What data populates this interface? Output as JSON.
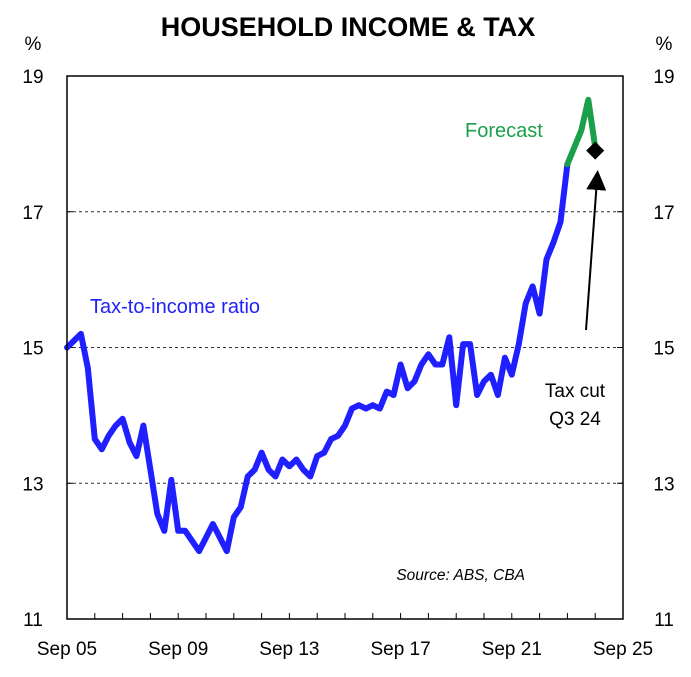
{
  "chart_data": {
    "type": "line",
    "title": "HOUSEHOLD INCOME & TAX",
    "ylabel_left": "%",
    "ylabel_right": "%",
    "ylim": [
      11,
      19
    ],
    "y_ticks": [
      "11",
      "13",
      "15",
      "17",
      "19"
    ],
    "x_ticks": [
      "Sep 05",
      "Sep 09",
      "Sep 13",
      "Sep 17",
      "Sep 21",
      "Sep 25"
    ],
    "grid": "horizontal dashed",
    "series": [
      {
        "name": "Tax-to-income ratio",
        "color": "#1f1fff",
        "points": [
          [
            "2005-09",
            15.0
          ],
          [
            "2005-12",
            15.1
          ],
          [
            "2006-03",
            15.2
          ],
          [
            "2006-06",
            14.7
          ],
          [
            "2006-09",
            13.65
          ],
          [
            "2006-12",
            13.5
          ],
          [
            "2007-03",
            13.7
          ],
          [
            "2007-06",
            13.85
          ],
          [
            "2007-09",
            13.95
          ],
          [
            "2007-12",
            13.6
          ],
          [
            "2008-03",
            13.4
          ],
          [
            "2008-06",
            13.85
          ],
          [
            "2008-09",
            13.2
          ],
          [
            "2008-12",
            12.55
          ],
          [
            "2009-03",
            12.3
          ],
          [
            "2009-06",
            13.05
          ],
          [
            "2009-09",
            12.3
          ],
          [
            "2009-12",
            12.3
          ],
          [
            "2010-03",
            12.15
          ],
          [
            "2010-06",
            12.0
          ],
          [
            "2010-09",
            12.2
          ],
          [
            "2010-12",
            12.4
          ],
          [
            "2011-03",
            12.2
          ],
          [
            "2011-06",
            12.0
          ],
          [
            "2011-09",
            12.5
          ],
          [
            "2011-12",
            12.65
          ],
          [
            "2012-03",
            13.1
          ],
          [
            "2012-06",
            13.2
          ],
          [
            "2012-09",
            13.45
          ],
          [
            "2012-12",
            13.2
          ],
          [
            "2013-03",
            13.1
          ],
          [
            "2013-06",
            13.35
          ],
          [
            "2013-09",
            13.25
          ],
          [
            "2013-12",
            13.35
          ],
          [
            "2014-03",
            13.2
          ],
          [
            "2014-06",
            13.1
          ],
          [
            "2014-09",
            13.4
          ],
          [
            "2014-12",
            13.45
          ],
          [
            "2015-03",
            13.65
          ],
          [
            "2015-06",
            13.7
          ],
          [
            "2015-09",
            13.85
          ],
          [
            "2015-12",
            14.1
          ],
          [
            "2016-03",
            14.15
          ],
          [
            "2016-06",
            14.1
          ],
          [
            "2016-09",
            14.15
          ],
          [
            "2016-12",
            14.1
          ],
          [
            "2017-03",
            14.35
          ],
          [
            "2017-06",
            14.3
          ],
          [
            "2017-09",
            14.75
          ],
          [
            "2017-12",
            14.4
          ],
          [
            "2018-03",
            14.5
          ],
          [
            "2018-06",
            14.75
          ],
          [
            "2018-09",
            14.9
          ],
          [
            "2018-12",
            14.75
          ],
          [
            "2019-03",
            14.75
          ],
          [
            "2019-06",
            15.15
          ],
          [
            "2019-09",
            14.15
          ],
          [
            "2019-12",
            15.05
          ],
          [
            "2020-03",
            15.05
          ],
          [
            "2020-06",
            14.3
          ],
          [
            "2020-09",
            14.5
          ],
          [
            "2020-12",
            14.6
          ],
          [
            "2021-03",
            14.3
          ],
          [
            "2021-06",
            14.85
          ],
          [
            "2021-09",
            14.6
          ],
          [
            "2021-12",
            15.05
          ],
          [
            "2022-03",
            15.65
          ],
          [
            "2022-06",
            15.9
          ],
          [
            "2022-09",
            15.5
          ],
          [
            "2022-12",
            16.3
          ],
          [
            "2023-03",
            16.55
          ],
          [
            "2023-06",
            16.85
          ],
          [
            "2023-09",
            17.7
          ]
        ]
      },
      {
        "name": "Forecast",
        "color": "#1aa04a",
        "points": [
          [
            "2023-09",
            17.7
          ],
          [
            "2024-03",
            18.2
          ],
          [
            "2024-06",
            18.65
          ],
          [
            "2024-09",
            17.95
          ]
        ]
      },
      {
        "name": "Tax cut Q3 24",
        "color": "#000000",
        "marker": "diamond",
        "points": [
          [
            "2024-09",
            17.9
          ]
        ]
      }
    ],
    "annotations": {
      "series_label": "Tax-to-income ratio",
      "forecast_label": "Forecast",
      "tax_cut_line1": "Tax cut",
      "tax_cut_line2": "Q3 24",
      "source": "Source: ABS, CBA"
    }
  }
}
